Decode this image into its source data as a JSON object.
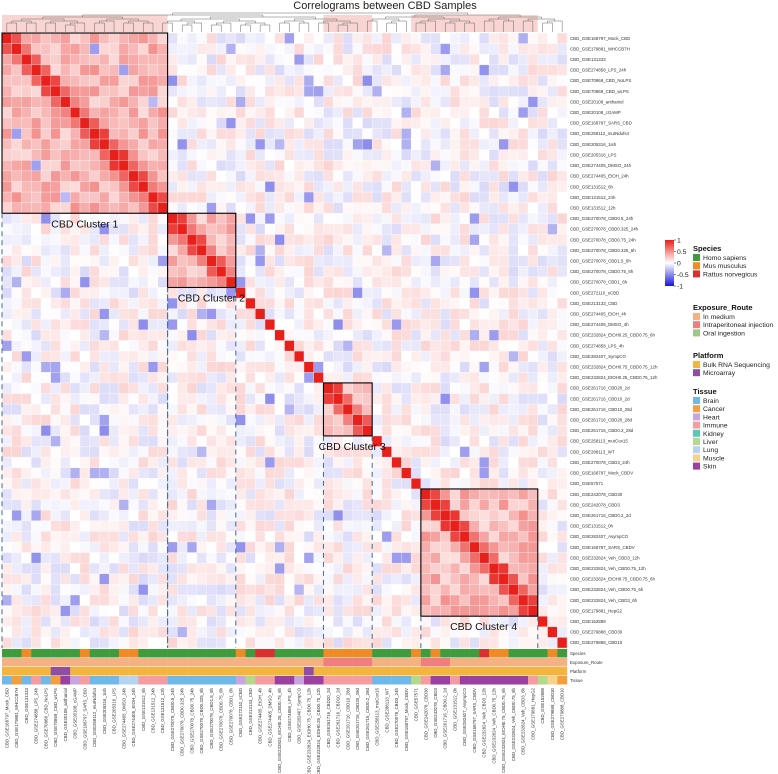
{
  "chart_data": {
    "type": "heatmap",
    "title": "Correlograms between CBD Samples",
    "samples": [
      "CBD_GSE168797_Mock_CBD",
      "CBD_GSE179881_MHCCB7H",
      "CBD_GSE131333",
      "CBD_GSE274858_LPS_24h",
      "CBD_GSE70868_CBD_NoLPS",
      "CBD_GSE70869_CBD_wLPS",
      "CBD_GSE20108_anthaniol",
      "CBD_GSE20108_cGAMP",
      "CBD_GSE168797_SARS_CBD",
      "CBD_GSE258112_mutNdufs4",
      "CBD_GSE205316_1ish",
      "CBD_GSE205316_LPS",
      "CBD_GSE274405_DMSO_24h",
      "CBD_GSE274405_EtOH_24h",
      "CBD_GSE131512_6h",
      "CBD_GSE131512_24h",
      "CBD_GSE131512_12h",
      "CBD_GSE270078_CBD0.5_24h",
      "CBD_GSE270078_CBD0.325_24h",
      "CBD_GSE270078_CBD0.75_24h",
      "CBD_GSE270078_CBD0.325_6h",
      "CBD_GSE270078_CBD1.5_6h",
      "CBD_GSE270078_CBD0.75_6h",
      "CBD_GSE270078_CBD1_6h",
      "CBD_GSE272110_sCBD",
      "CBD_GSE213133_CBD",
      "CBD_GSE274405_EtOH_4h",
      "CBD_GSE274405_DMSO_4h",
      "CBD_GSE232824_EtOH0.25_CBD0.75_6h",
      "CBD_GSE274858_LPS_4h",
      "CBD_GSE282407_SympCO",
      "CBD_GSE232824_EtOH0.75_CBD0.75_12h",
      "CBD_GSE232824_EtOH0.25_CBD0.75_12h",
      "CBD_GSE261716_CBD20_2d",
      "CBD_GSE261716_CBD10_2d",
      "CBD_GSE261716_CBD10_28d",
      "CBD_GSE261716_CBD20_28d",
      "CBD_GSE261716_CBD0.2_28d",
      "CBD_GSE258113_mutCox15",
      "CBD_GSE288113_WT",
      "CBD_GSE270078_CBD3_24h",
      "CBD_GSE168797_Mock_CBDV",
      "CBD_GSE57571",
      "CBD_GSE242078_CBD30",
      "CBD_GSE242078_CBD3",
      "CBD_GSE261716_CBD0.2_2d",
      "CBD_GSE131512_0h",
      "CBD_GSE282407_AsympCO",
      "CBD_GSE168797_SARS_CBDV",
      "CBD_GSE232824_Veh_CBD3_12h",
      "CBD_GSE232824_Veh_CBD0.75_12h",
      "CBD_GSE232824_EtOH0.75_CBD0.75_6h",
      "CBD_GSE232824_Veh_CBD0.75_6h",
      "CBD_GSE232824_Veh_CBD3_6h",
      "CBD_GSE179881_HepG2",
      "CBD_GSE152888",
      "CBD_GSE279888_CBD30",
      "CBD_GSE279888_CBD10"
    ],
    "clusters": [
      {
        "label": "CBD Cluster 1",
        "start": 1,
        "end": 17
      },
      {
        "label": "CBD Cluster 2",
        "start": 18,
        "end": 24
      },
      {
        "label": "CBD Cluster 3",
        "start": 34,
        "end": 38
      },
      {
        "label": "CBD Cluster 4",
        "start": 44,
        "end": 55
      }
    ],
    "color_scale": {
      "ticks": [
        "1",
        "0.5",
        "0",
        "-0.5",
        "-1"
      ],
      "high": "#e8201c",
      "mid": "#ffffff",
      "low": "#1a17d6"
    },
    "annotation_rows": [
      "Species",
      "Exposure_Route",
      "Platform",
      "Tissue"
    ],
    "annotation_row_labels": [
      "Species",
      "Exposure_Route",
      "Platform",
      "Tissue"
    ],
    "legend": [
      {
        "title": "Species",
        "items": [
          {
            "label": "Homo sapiens",
            "color": "#3f9b3c"
          },
          {
            "label": "Mus musculus",
            "color": "#f08a24"
          },
          {
            "label": "Rattus norvegicus",
            "color": "#d8302c"
          }
        ]
      },
      {
        "title": "Exposure_Route",
        "items": [
          {
            "label": "In medium",
            "color": "#f4b183"
          },
          {
            "label": "Intraperitoneal injection",
            "color": "#f07e7e"
          },
          {
            "label": "Oral ingestion",
            "color": "#9cc98a"
          }
        ]
      },
      {
        "title": "Platform",
        "items": [
          {
            "label": "Bulk RNA Sequencing",
            "color": "#f3b53d"
          },
          {
            "label": "Microarray",
            "color": "#8e4fa0"
          }
        ]
      },
      {
        "title": "Tissue",
        "items": [
          {
            "label": "Brain",
            "color": "#6fb8e8"
          },
          {
            "label": "Cancer",
            "color": "#f3a03c"
          },
          {
            "label": "Heart",
            "color": "#c7a5df"
          },
          {
            "label": "Immune",
            "color": "#f49ca0"
          },
          {
            "label": "Kidney",
            "color": "#57c9b8"
          },
          {
            "label": "Liver",
            "color": "#b5d98a"
          },
          {
            "label": "Lung",
            "color": "#b6d4ef"
          },
          {
            "label": "Muscle",
            "color": "#f6d28c"
          },
          {
            "label": "Skin",
            "color": "#9b3fa0"
          }
        ]
      }
    ],
    "legend_placement": "right"
  }
}
